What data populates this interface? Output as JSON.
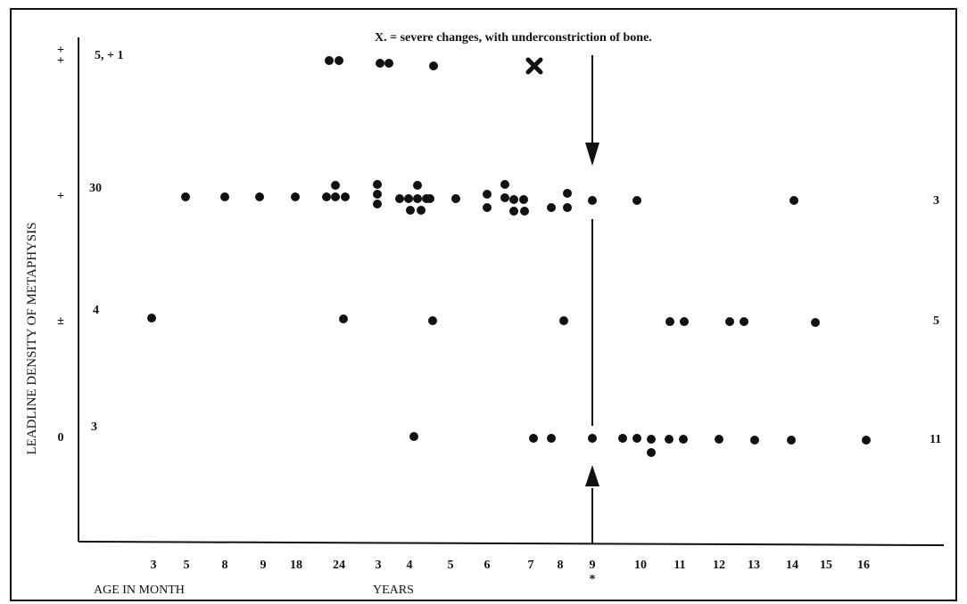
{
  "chart_data": {
    "type": "scatter",
    "title": "",
    "ylabel": "LEADLINE DENSITY OF METAPHYSIS",
    "xlabel_months": "AGE IN MONTH",
    "xlabel_years": "YEARS",
    "annotation": "X. = severe changes, with underconstriction of bone.",
    "highlight_label": "*",
    "x_ticks": [
      {
        "id": "m3",
        "label": "3"
      },
      {
        "id": "m5",
        "label": "5"
      },
      {
        "id": "m8",
        "label": "8"
      },
      {
        "id": "m9",
        "label": "9"
      },
      {
        "id": "m18",
        "label": "18"
      },
      {
        "id": "m24",
        "label": "24"
      },
      {
        "id": "y3",
        "label": "3"
      },
      {
        "id": "y4",
        "label": "4"
      },
      {
        "id": "y5",
        "label": "5"
      },
      {
        "id": "y6",
        "label": "6"
      },
      {
        "id": "y7",
        "label": "7"
      },
      {
        "id": "y8",
        "label": "8"
      },
      {
        "id": "y9",
        "label": "9"
      },
      {
        "id": "y10",
        "label": "10"
      },
      {
        "id": "y11",
        "label": "11"
      },
      {
        "id": "y12",
        "label": "12"
      },
      {
        "id": "y13",
        "label": "13"
      },
      {
        "id": "y14",
        "label": "14"
      },
      {
        "id": "y15",
        "label": "15"
      },
      {
        "id": "y16",
        "label": "16"
      }
    ],
    "y_levels": [
      {
        "id": "pp",
        "label": "++",
        "count_left": "5, + 1",
        "count_right": ""
      },
      {
        "id": "p",
        "label": "+",
        "count_left": "30",
        "count_right": "3"
      },
      {
        "id": "pm",
        "label": "±",
        "count_left": "4",
        "count_right": "5"
      },
      {
        "id": "z",
        "label": "0",
        "count_left": "3",
        "count_right": "11"
      }
    ],
    "points": [
      {
        "level": "pp",
        "age": "22 months",
        "n": 2
      },
      {
        "level": "pp",
        "age": "3 years",
        "n": 2
      },
      {
        "level": "pp",
        "age": "4.6 years",
        "n": 1
      },
      {
        "level": "pp",
        "age": "7.2 years",
        "n": 1,
        "marker": "X"
      },
      {
        "level": "p",
        "age": "5 months",
        "n": 1
      },
      {
        "level": "p",
        "age": "8 months",
        "n": 1
      },
      {
        "level": "p",
        "age": "9 months",
        "n": 1
      },
      {
        "level": "p",
        "age": "18 months",
        "n": 1
      },
      {
        "level": "p",
        "age": "22-24 months",
        "n": 5
      },
      {
        "level": "p",
        "age": "3 years",
        "n": 3
      },
      {
        "level": "p",
        "age": "3.5-4.6 years",
        "n": 8
      },
      {
        "level": "p",
        "age": "5.1 years",
        "n": 1
      },
      {
        "level": "p",
        "age": "6 years",
        "n": 2
      },
      {
        "level": "p",
        "age": "6.4-7 years",
        "n": 6
      },
      {
        "level": "p",
        "age": "7.8-8.2 years",
        "n": 3
      },
      {
        "level": "p",
        "age": "9 years",
        "n": 1
      },
      {
        "level": "p",
        "age": "10 years",
        "n": 1
      },
      {
        "level": "p",
        "age": "14.1 years",
        "n": 1
      },
      {
        "level": "pm",
        "age": "3 months",
        "n": 1
      },
      {
        "level": "pm",
        "age": "24 months",
        "n": 1
      },
      {
        "level": "pm",
        "age": "4.6 years",
        "n": 1
      },
      {
        "level": "pm",
        "age": "8 years",
        "n": 1
      },
      {
        "level": "pm",
        "age": "10.8-11.2 years",
        "n": 2
      },
      {
        "level": "pm",
        "age": "12.3-12.8 years",
        "n": 2
      },
      {
        "level": "pm",
        "age": "14.6 years",
        "n": 1
      },
      {
        "level": "z",
        "age": "4.1 years",
        "n": 1
      },
      {
        "level": "z",
        "age": "7.1-7.6 years",
        "n": 2
      },
      {
        "level": "z",
        "age": "9 years",
        "n": 1
      },
      {
        "level": "z",
        "age": "9.7-10.4 years",
        "n": 4
      },
      {
        "level": "z",
        "age": "10.8-11.2 years",
        "n": 2
      },
      {
        "level": "z",
        "age": "12.1 years",
        "n": 1
      },
      {
        "level": "z",
        "age": "13.1 years",
        "n": 1
      },
      {
        "level": "z",
        "age": "14.1 years",
        "n": 1
      },
      {
        "level": "z",
        "age": "16.1 years",
        "n": 1
      }
    ]
  }
}
